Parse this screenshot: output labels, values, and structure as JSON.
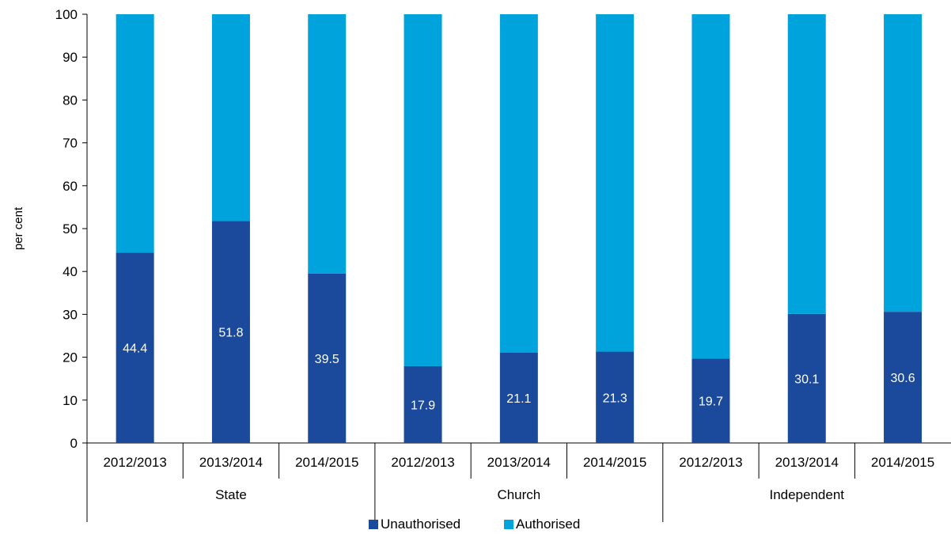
{
  "chart_data": {
    "type": "bar",
    "stacked": true,
    "ylabel": "per cent",
    "ylim": [
      0,
      100
    ],
    "yticks": [
      0,
      10,
      20,
      30,
      40,
      50,
      60,
      70,
      80,
      90,
      100
    ],
    "groups": [
      {
        "label": "State",
        "categories": [
          "2012/2013",
          "2013/2014",
          "2014/2015"
        ]
      },
      {
        "label": "Church",
        "categories": [
          "2012/2013",
          "2013/2014",
          "2014/2015"
        ]
      },
      {
        "label": "Independent",
        "categories": [
          "2012/2013",
          "2013/2014",
          "2014/2015"
        ]
      }
    ],
    "series": [
      {
        "name": "Unauthorised",
        "color": "#1b4a9c",
        "values": [
          44.4,
          51.8,
          39.5,
          17.9,
          21.1,
          21.3,
          19.7,
          30.1,
          30.6
        ],
        "data_labels": [
          "44.4",
          "51.8",
          "39.5",
          "17.9",
          "21.1",
          "21.3",
          "19.7",
          "30.1",
          "30.6"
        ]
      },
      {
        "name": "Authorised",
        "color": "#00a3dc",
        "values": [
          55.6,
          48.2,
          60.5,
          82.1,
          78.9,
          78.7,
          80.3,
          69.9,
          69.4
        ]
      }
    ],
    "legend": {
      "position": "bottom"
    },
    "grid": false
  }
}
